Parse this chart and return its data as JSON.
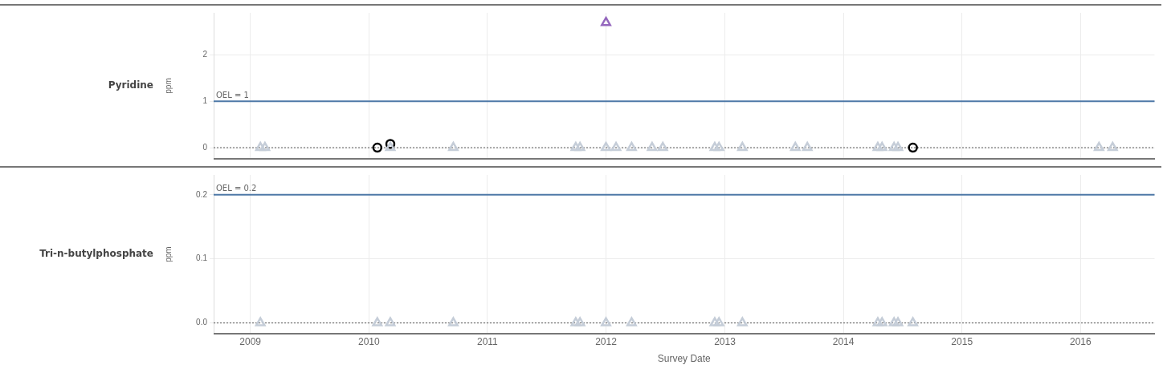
{
  "chart_data": [
    {
      "type": "scatter",
      "title": "Pyridine",
      "ylabel": "ppm",
      "xlim": [
        "2008-09-10",
        "2016-08-16"
      ],
      "xticks": [
        "2009",
        "2010",
        "2011",
        "2012",
        "2013",
        "2014",
        "2015",
        "2016"
      ],
      "ylim": [
        -0.24,
        2.9
      ],
      "yticks": [
        0,
        1,
        2
      ],
      "grid": true,
      "tick_labels": "y",
      "series": [
        {
          "color": "#c5cdd8",
          "marker": "triangle",
          "x": [
            "2009-02-01",
            "2009-02-15",
            "2010-03-08",
            "2010-09-18",
            "2011-09-30",
            "2011-10-13",
            "2012-01-01",
            "2012-02-01",
            "2012-03-20",
            "2012-05-22",
            "2012-06-24",
            "2012-12-01",
            "2012-12-14",
            "2013-02-24",
            "2013-08-06",
            "2013-09-12",
            "2014-04-17",
            "2014-04-30",
            "2014-06-06",
            "2014-06-18",
            "2016-02-27",
            "2016-04-09"
          ],
          "values": [
            0,
            0,
            0,
            0,
            0,
            0,
            0,
            0,
            0,
            0,
            0,
            0,
            0,
            0,
            0,
            0,
            0,
            0,
            0,
            0,
            0,
            0
          ]
        },
        {
          "color": "#000000",
          "marker": "circle",
          "x": [
            "2010-01-27",
            "2010-03-08",
            "2014-08-03"
          ],
          "values": [
            0,
            0.08,
            0
          ]
        },
        {
          "color": "#9467bd",
          "marker": "triangle",
          "x": [
            "2012-01-01"
          ],
          "values": [
            2.69
          ]
        }
      ],
      "ref_lines": [
        {
          "axis": "y",
          "value": 1,
          "label": "OEL = 1",
          "color": "#4e79a7",
          "line_style": "solid"
        },
        {
          "axis": "y",
          "value": 0,
          "color": "#555555",
          "line_style": "dotted"
        }
      ]
    },
    {
      "type": "scatter",
      "title": "Tri-n-butylphosphate",
      "ylabel": "ppm",
      "xlabel": "Survey Date",
      "xlim": [
        "2008-09-10",
        "2016-08-16"
      ],
      "xticks": [
        "2009",
        "2010",
        "2011",
        "2012",
        "2013",
        "2014",
        "2015",
        "2016"
      ],
      "ylim": [
        -0.017,
        0.231
      ],
      "yticks": [
        {
          "value": 0,
          "label": "0.0"
        },
        0.1,
        0.2
      ],
      "grid": true,
      "series": [
        {
          "color": "#c5cdd8",
          "marker": "triangle",
          "x": [
            "2009-02-01",
            "2010-01-27",
            "2010-03-08",
            "2010-09-18",
            "2011-09-30",
            "2011-10-13",
            "2012-01-01",
            "2012-03-20",
            "2012-12-01",
            "2012-12-14",
            "2013-02-24",
            "2014-04-17",
            "2014-04-30",
            "2014-06-06",
            "2014-06-18",
            "2014-08-03"
          ],
          "values": [
            0,
            0,
            0,
            0,
            0,
            0,
            0,
            0,
            0,
            0,
            0,
            0,
            0,
            0,
            0,
            0
          ]
        }
      ],
      "ref_lines": [
        {
          "axis": "y",
          "value": 0.2,
          "label": "OEL = 0.2",
          "color": "#4e79a7",
          "line_style": "solid"
        },
        {
          "axis": "y",
          "value": 0,
          "color": "#555555",
          "line_style": "dotted"
        }
      ]
    }
  ]
}
